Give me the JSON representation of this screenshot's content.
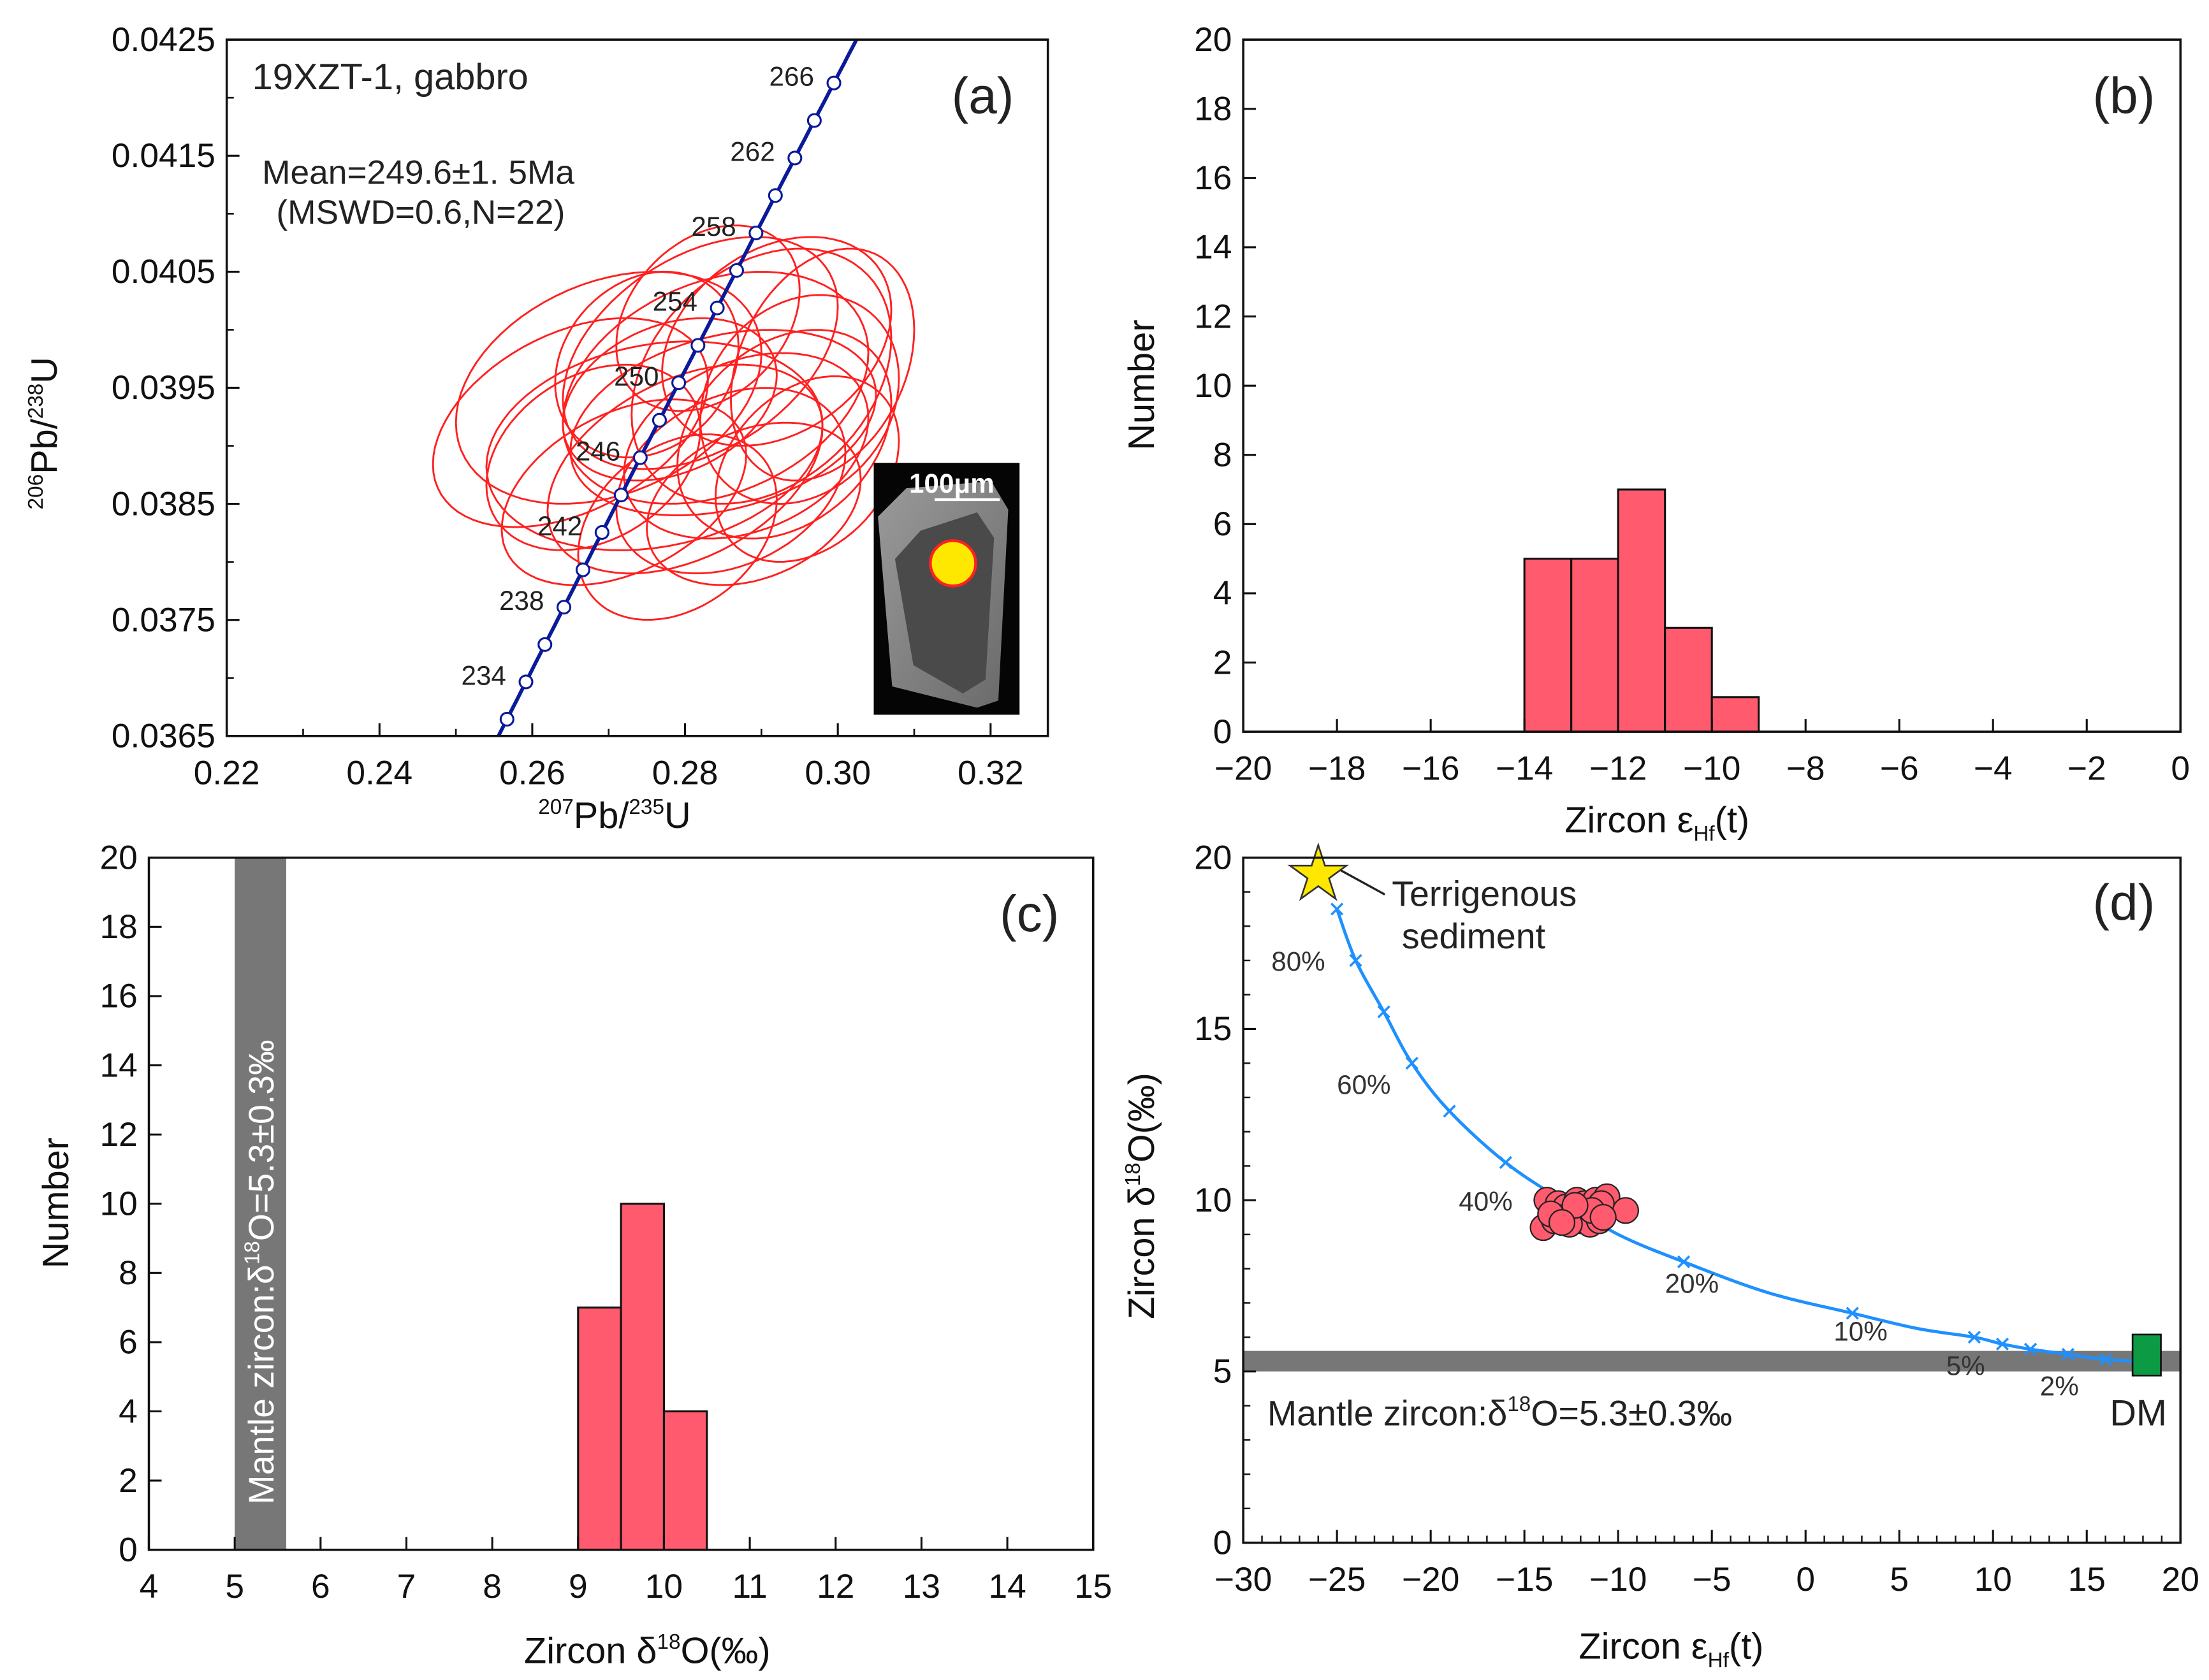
{
  "colors": {
    "ellipse": "#ff2020",
    "concordia": "#0a1a9a",
    "bar": "#ff5a6e",
    "mix": "#1e90ff",
    "band": "#777777",
    "star": "#ffe800",
    "dm": "#0d9a45",
    "circle": "#ff5a6e"
  },
  "chart_data": [
    {
      "id": "a",
      "type": "scatter",
      "panel_label": "(a)",
      "title": "19XZT-1, gabbro",
      "annotation_line1": "Mean=249.6±1. 5Ma",
      "annotation_line2": "(MSWD=0.6,N=22)",
      "xlabel_sup1": "207",
      "xlabel_main1": "Pb/",
      "xlabel_sup2": "235",
      "xlabel_main2": "U",
      "ylabel_sup1": "206",
      "ylabel_main1": "Pb/",
      "ylabel_sup2": "238",
      "ylabel_main2": "U",
      "xlim": [
        0.22,
        0.3275
      ],
      "ylim": [
        0.0365,
        0.0425
      ],
      "xticks": [
        "0.22",
        "0.24",
        "0.26",
        "0.28",
        "0.30",
        "0.32"
      ],
      "yticks": [
        "0.0365",
        "0.0375",
        "0.0385",
        "0.0395",
        "0.0405",
        "0.0415",
        "0.0425"
      ],
      "concordia_ages_ma": [
        232,
        234,
        236,
        238,
        240,
        242,
        244,
        246,
        248,
        250,
        252,
        254,
        256,
        258,
        260,
        262,
        264,
        266
      ],
      "concordia_labels": [
        "234",
        "238",
        "242",
        "246",
        "250",
        "254",
        "258",
        "262",
        "266"
      ],
      "ellipses": [
        [
          0.27,
          0.0395,
          0.02,
          0.001,
          0.3
        ],
        [
          0.282,
          0.0398,
          0.018,
          0.001,
          0.4
        ],
        [
          0.29,
          0.0396,
          0.017,
          0.0011,
          0.3
        ],
        [
          0.285,
          0.0392,
          0.02,
          0.0008,
          0.3
        ],
        [
          0.276,
          0.039,
          0.022,
          0.0009,
          0.2
        ],
        [
          0.292,
          0.0399,
          0.015,
          0.0009,
          0.3
        ],
        [
          0.28,
          0.0388,
          0.018,
          0.0009,
          0.4
        ],
        [
          0.288,
          0.039,
          0.016,
          0.0008,
          0.3
        ],
        [
          0.265,
          0.0392,
          0.018,
          0.0009,
          0.4
        ],
        [
          0.295,
          0.0394,
          0.013,
          0.0009,
          0.2
        ],
        [
          0.278,
          0.0394,
          0.014,
          0.0007,
          0.3
        ],
        [
          0.286,
          0.0387,
          0.015,
          0.0008,
          0.3
        ],
        [
          0.272,
          0.0386,
          0.016,
          0.0008,
          0.4
        ],
        [
          0.283,
          0.0401,
          0.012,
          0.0008,
          0.3
        ],
        [
          0.298,
          0.0397,
          0.012,
          0.001,
          0.3
        ],
        [
          0.275,
          0.0397,
          0.012,
          0.0008,
          0.2
        ],
        [
          0.289,
          0.0385,
          0.014,
          0.0007,
          0.3
        ],
        [
          0.268,
          0.0389,
          0.014,
          0.0008,
          0.3
        ],
        [
          0.293,
          0.0391,
          0.014,
          0.0009,
          0.3
        ],
        [
          0.279,
          0.0383,
          0.013,
          0.0008,
          0.3
        ],
        [
          0.284,
          0.0395,
          0.02,
          0.001,
          0.3
        ],
        [
          0.296,
          0.0388,
          0.012,
          0.0008,
          0.3
        ]
      ],
      "inset_scale_label": "100μm"
    },
    {
      "id": "b",
      "type": "bar",
      "panel_label": "(b)",
      "xlabel_main": "Zircon ε",
      "xlabel_sub": "Hf",
      "xlabel_tail": "(t)",
      "ylabel": "Number",
      "xlim": [
        -20,
        0
      ],
      "ylim": [
        0,
        20
      ],
      "xticks": [
        "−20",
        "−18",
        "−16",
        "−14",
        "−12",
        "−10",
        "−8",
        "−6",
        "−4",
        "−2",
        "0"
      ],
      "yticks": [
        "0",
        "2",
        "4",
        "6",
        "8",
        "10",
        "12",
        "14",
        "16",
        "18",
        "20"
      ],
      "bins": [
        [
          -14,
          -13
        ],
        [
          -13,
          -12
        ],
        [
          -12,
          -11
        ],
        [
          -11,
          -10
        ],
        [
          -10,
          -9
        ]
      ],
      "values": [
        5,
        5,
        7,
        3,
        1
      ]
    },
    {
      "id": "c",
      "type": "bar",
      "panel_label": "(c)",
      "xlabel_main": "Zircon  δ",
      "xlabel_sup": "18",
      "xlabel_tail": "O(‰)",
      "ylabel": "Number",
      "xlim": [
        4,
        15
      ],
      "ylim": [
        0,
        20
      ],
      "xticks": [
        "4",
        "5",
        "6",
        "7",
        "8",
        "9",
        "10",
        "11",
        "12",
        "13",
        "14",
        "15"
      ],
      "yticks": [
        "0",
        "2",
        "4",
        "6",
        "8",
        "10",
        "12",
        "14",
        "16",
        "18",
        "20"
      ],
      "bins": [
        [
          9,
          9.5
        ],
        [
          9.5,
          10
        ],
        [
          10,
          10.5
        ]
      ],
      "values": [
        7,
        10,
        4
      ],
      "mantle_band": [
        5.0,
        5.6
      ],
      "mantle_text_main": "Mantle zircon:δ",
      "mantle_text_sup": "18",
      "mantle_text_tail": "O=5.3±0.3‰"
    },
    {
      "id": "d",
      "type": "line",
      "panel_label": "(d)",
      "xlabel_main": "Zircon ε",
      "xlabel_sub": "Hf",
      "xlabel_tail": "(t)",
      "ylabel_main": "Zircon  δ",
      "ylabel_sup": "18",
      "ylabel_tail": "O(‰)",
      "xlim": [
        -30,
        20
      ],
      "ylim": [
        0,
        20
      ],
      "xticks": [
        "−30",
        "−25",
        "−20",
        "−15",
        "−10",
        "−5",
        "0",
        "5",
        "10",
        "15",
        "20"
      ],
      "yticks": [
        "0",
        "5",
        "10",
        "15",
        "20"
      ],
      "mixing_curve": [
        [
          -25,
          18.5
        ],
        [
          -24,
          17.0
        ],
        [
          -22.5,
          15.5
        ],
        [
          -21,
          14.0
        ],
        [
          -19,
          12.6
        ],
        [
          -16,
          11.1
        ],
        [
          -13,
          10.0
        ],
        [
          -10,
          9.0
        ],
        [
          -6.5,
          8.2
        ],
        [
          -2,
          7.3
        ],
        [
          2.5,
          6.7
        ],
        [
          6,
          6.25
        ],
        [
          9,
          6.0
        ],
        [
          10.5,
          5.8
        ],
        [
          12,
          5.65
        ],
        [
          14,
          5.5
        ],
        [
          16,
          5.35
        ],
        [
          18,
          5.3
        ]
      ],
      "mixing_markers": [
        [
          -25,
          18.5
        ],
        [
          -24,
          17.0
        ],
        [
          -22.5,
          15.5
        ],
        [
          -21,
          14.0
        ],
        [
          -19,
          12.6
        ],
        [
          -16,
          11.1
        ],
        [
          -6.5,
          8.2
        ],
        [
          2.5,
          6.7
        ],
        [
          9,
          6.0
        ],
        [
          10.5,
          5.8
        ],
        [
          12,
          5.65
        ],
        [
          14,
          5.5
        ],
        [
          16,
          5.35
        ]
      ],
      "mixing_labels": [
        {
          "text": "80%",
          "x": -28.5,
          "y": 16.7
        },
        {
          "text": "60%",
          "x": -25,
          "y": 13.1
        },
        {
          "text": "40%",
          "x": -18.5,
          "y": 9.7
        },
        {
          "text": "20%",
          "x": -7.5,
          "y": 7.3
        },
        {
          "text": "10%",
          "x": 1.5,
          "y": 5.9
        },
        {
          "text": "5%",
          "x": 7.5,
          "y": 4.9
        },
        {
          "text": "2%",
          "x": 12.5,
          "y": 4.3
        }
      ],
      "samples": [
        [
          -13.8,
          10.0
        ],
        [
          -13.2,
          9.9
        ],
        [
          -12.8,
          9.8
        ],
        [
          -12.2,
          10.0
        ],
        [
          -11.8,
          9.9
        ],
        [
          -11.2,
          10.0
        ],
        [
          -10.6,
          10.1
        ],
        [
          -10.9,
          9.9
        ],
        [
          -9.6,
          9.7
        ],
        [
          -14.0,
          9.2
        ],
        [
          -13.4,
          9.4
        ],
        [
          -12.9,
          9.5
        ],
        [
          -12.4,
          9.6
        ],
        [
          -12.0,
          9.4
        ],
        [
          -11.5,
          9.3
        ],
        [
          -11.0,
          9.4
        ],
        [
          -13.6,
          9.6
        ],
        [
          -12.6,
          9.3
        ],
        [
          -11.4,
          9.7
        ],
        [
          -12.3,
          9.85
        ],
        [
          -10.8,
          9.5
        ],
        [
          -13.0,
          9.35
        ]
      ],
      "star": {
        "x": -26,
        "y": 19.5,
        "label_line1": "Terrigenous",
        "label_line2": "sediment"
      },
      "dm": {
        "x": 18.2,
        "y": 5.5,
        "label": "DM"
      },
      "mantle_band": [
        5.0,
        5.6
      ],
      "mantle_text_main": "Mantle zircon:δ",
      "mantle_text_sup": "18",
      "mantle_text_tail": "O=5.3±0.3‰"
    }
  ]
}
